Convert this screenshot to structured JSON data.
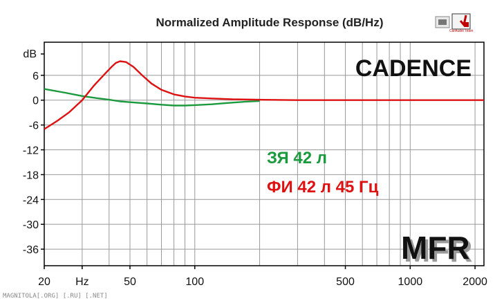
{
  "chart_data": {
    "type": "line",
    "title": "Normalized Amplitude Response (dB/Hz)",
    "ylabel": "dB",
    "xlabel": "Hz",
    "x_scale": "log",
    "xlim": [
      20,
      2200
    ],
    "ylim": [
      -40,
      14
    ],
    "x_tick_labels": [
      {
        "value": 20,
        "label": "20"
      },
      {
        "value": 30,
        "label": "Hz"
      },
      {
        "value": 50,
        "label": "50"
      },
      {
        "value": 100,
        "label": "100"
      },
      {
        "value": 500,
        "label": "500"
      },
      {
        "value": 1000,
        "label": "1000"
      },
      {
        "value": 2000,
        "label": "2000"
      }
    ],
    "y_ticks": [
      6,
      0,
      -6,
      -12,
      -18,
      -24,
      -30,
      -36
    ],
    "y_tick_labels": [
      "6",
      "0",
      "-6",
      "-12",
      "-18",
      "-24",
      "-30",
      "-36"
    ],
    "grid": true,
    "series": [
      {
        "name": "ЗЯ 42 л",
        "color": "#1a9a3c",
        "points": [
          [
            20,
            2.7
          ],
          [
            25,
            1.8
          ],
          [
            30,
            1.0
          ],
          [
            35,
            0.5
          ],
          [
            40,
            0.1
          ],
          [
            45,
            -0.3
          ],
          [
            50,
            -0.5
          ],
          [
            60,
            -0.8
          ],
          [
            70,
            -1.1
          ],
          [
            80,
            -1.3
          ],
          [
            90,
            -1.3
          ],
          [
            100,
            -1.2
          ],
          [
            120,
            -1.0
          ],
          [
            140,
            -0.7
          ],
          [
            170,
            -0.4
          ],
          [
            200,
            -0.2
          ]
        ]
      },
      {
        "name": "ФИ 42 л 45 Гц",
        "color": "#dd1111",
        "points": [
          [
            20,
            -7
          ],
          [
            23,
            -5
          ],
          [
            26,
            -3
          ],
          [
            30,
            0
          ],
          [
            34,
            3.5
          ],
          [
            38,
            6.2
          ],
          [
            41,
            8.0
          ],
          [
            43,
            9.0
          ],
          [
            45,
            9.4
          ],
          [
            48,
            9.2
          ],
          [
            52,
            8.0
          ],
          [
            57,
            6.0
          ],
          [
            63,
            4.0
          ],
          [
            70,
            2.5
          ],
          [
            80,
            1.4
          ],
          [
            90,
            0.9
          ],
          [
            100,
            0.6
          ],
          [
            120,
            0.4
          ],
          [
            150,
            0.2
          ],
          [
            200,
            0.1
          ],
          [
            300,
            0.0
          ],
          [
            2200,
            0.0
          ]
        ]
      }
    ],
    "annotations": {
      "brand": "CADENCE",
      "mfr": "MFR"
    }
  },
  "footer": "MAGNITOLA[.ORG] [.RU] [.NET]",
  "logo_text": "CarAudio Team",
  "colors": {
    "plot_border": "#000000",
    "grid": "#999999",
    "green_series": "#1a9a3c",
    "red_series": "#dd1111"
  }
}
